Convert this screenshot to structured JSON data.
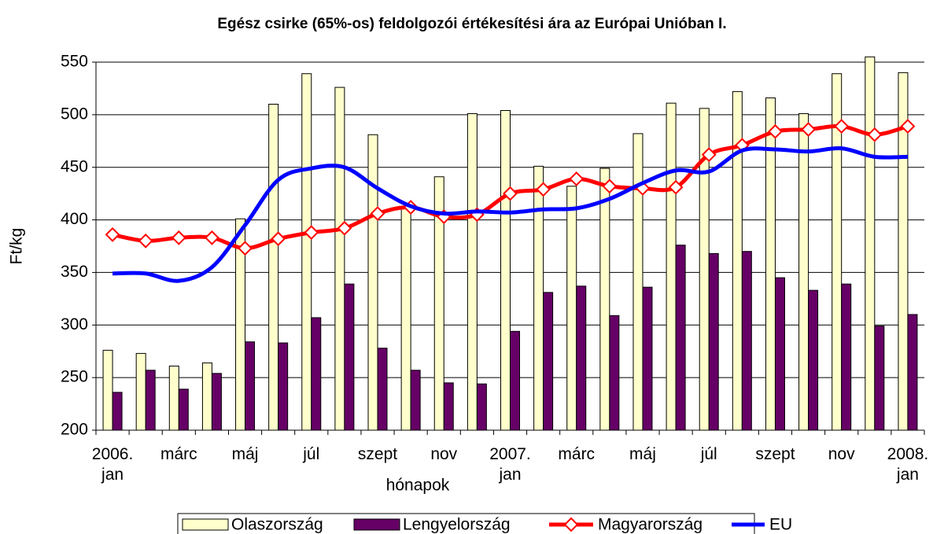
{
  "chart_data": {
    "type": "bar-line",
    "title": "Egész csirke (65%-os) feldolgozói értékesítési ára az Európai Unióban I.",
    "xlabel": "hónapok",
    "ylabel": "Ft/kg",
    "categories": [
      "2006. jan",
      null,
      "márc",
      null,
      "máj",
      null,
      "júl",
      null,
      "szept",
      null,
      "nov",
      null,
      "2007. jan",
      null,
      "márc",
      null,
      "máj",
      null,
      "júl",
      null,
      "szept",
      null,
      "nov",
      null,
      "2008. jan"
    ],
    "ylim": [
      200,
      550
    ],
    "yticks": [
      200,
      250,
      300,
      350,
      400,
      450,
      500,
      550
    ],
    "grid": true,
    "legend": "bottom",
    "series": [
      {
        "name": "Olaszország",
        "type": "bar",
        "color": "#ffffcc",
        "values": [
          276,
          273,
          261,
          264,
          401,
          510,
          539,
          526,
          481,
          412,
          441,
          501,
          504,
          451,
          432,
          449,
          482,
          511,
          506,
          522,
          516,
          501,
          539,
          555,
          540
        ]
      },
      {
        "name": "Lengyelország",
        "type": "bar",
        "color": "#660066",
        "values": [
          236,
          257,
          239,
          254,
          284,
          283,
          307,
          339,
          278,
          257,
          245,
          244,
          294,
          331,
          337,
          309,
          336,
          376,
          368,
          370,
          345,
          333,
          339,
          299,
          310
        ]
      },
      {
        "name": "Magyarország",
        "type": "line",
        "marker": "diamond",
        "color": "#ff0000",
        "values": [
          386,
          380,
          383,
          383,
          373,
          382,
          388,
          392,
          406,
          412,
          403,
          405,
          425,
          429,
          439,
          432,
          430,
          431,
          462,
          471,
          484,
          486,
          489,
          481,
          489
        ]
      },
      {
        "name": "EU",
        "type": "line",
        "color": "#0000ff",
        "values": [
          349,
          349,
          342,
          355,
          395,
          438,
          449,
          450,
          430,
          413,
          406,
          408,
          407,
          410,
          411,
          420,
          435,
          447,
          446,
          466,
          467,
          465,
          468,
          460,
          460
        ]
      }
    ]
  }
}
